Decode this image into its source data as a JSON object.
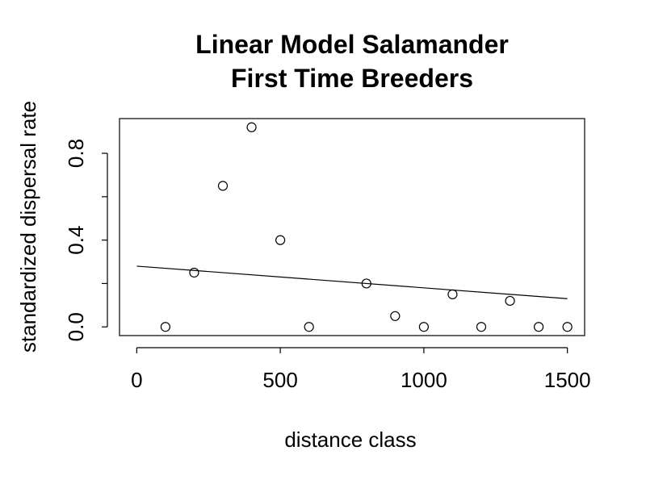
{
  "chart_data": {
    "type": "scatter",
    "title_lines": [
      "Linear Model Salamander",
      "First Time Breeders"
    ],
    "xlabel": "distance class",
    "ylabel": "standardized dispersal rate",
    "xlim": [
      -60,
      1560
    ],
    "ylim": [
      -0.04,
      0.96
    ],
    "x_ticks": [
      0,
      500,
      1000,
      1500
    ],
    "x_tick_labels": [
      "0",
      "500",
      "1000",
      "1500"
    ],
    "y_ticks": [
      0.0,
      0.2,
      0.4,
      0.6,
      0.8
    ],
    "y_tick_labels": [
      "0.0",
      "",
      "0.4",
      "",
      "0.8"
    ],
    "grid": false,
    "points": [
      {
        "x": 100,
        "y": 0.0
      },
      {
        "x": 200,
        "y": 0.25
      },
      {
        "x": 300,
        "y": 0.65
      },
      {
        "x": 400,
        "y": 0.92
      },
      {
        "x": 500,
        "y": 0.4
      },
      {
        "x": 600,
        "y": 0.0
      },
      {
        "x": 800,
        "y": 0.2
      },
      {
        "x": 900,
        "y": 0.05
      },
      {
        "x": 1000,
        "y": 0.0
      },
      {
        "x": 1100,
        "y": 0.15
      },
      {
        "x": 1200,
        "y": 0.0
      },
      {
        "x": 1300,
        "y": 0.12
      },
      {
        "x": 1400,
        "y": 0.0
      },
      {
        "x": 1500,
        "y": 0.0
      }
    ],
    "fit_line": {
      "x": [
        0,
        1500
      ],
      "y": [
        0.28,
        0.13
      ]
    },
    "colors": {
      "points": "#000000",
      "line": "#000000",
      "box": "#000000"
    }
  }
}
